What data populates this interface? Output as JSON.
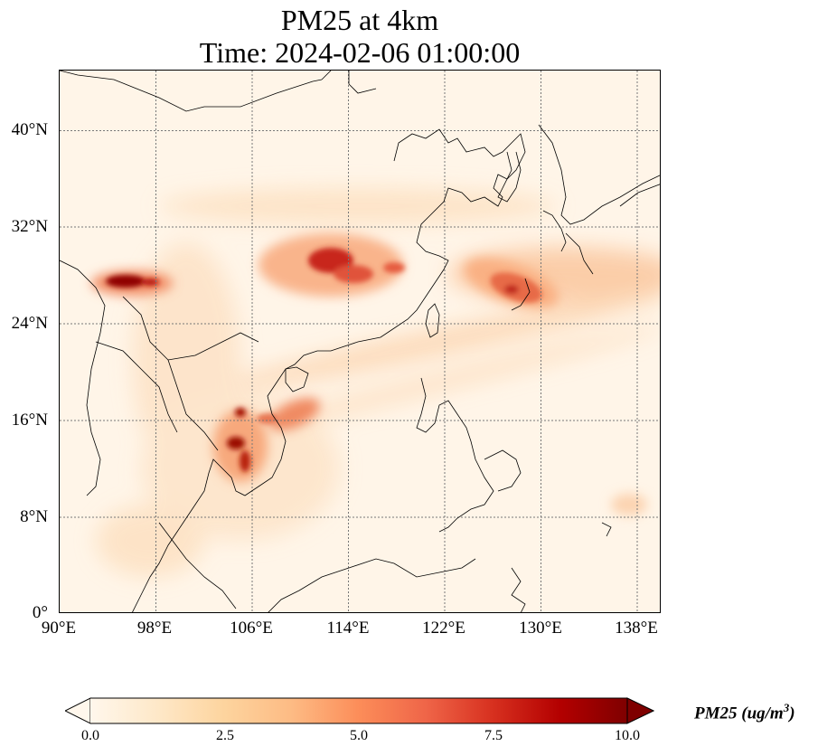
{
  "title": {
    "line1": "PM25 at 4km",
    "line2": "Time: 2024-02-06 01:00:00"
  },
  "map": {
    "lat_ticks": [
      "40°N",
      "32°N",
      "24°N",
      "16°N",
      "8°N",
      "0°"
    ],
    "lon_ticks": [
      "90°E",
      "98°E",
      "106°E",
      "114°E",
      "122°E",
      "130°E",
      "138°E"
    ],
    "extent": {
      "lon_min": 90,
      "lon_max": 140,
      "lat_min": 0,
      "lat_max": 45
    },
    "gridlines": true,
    "colormap": "OrRd"
  },
  "colorbar": {
    "label_prefix": "PM25 (ug/m",
    "label_sup": "3",
    "label_suffix": ")",
    "ticks": [
      "0.0",
      "2.5",
      "5.0",
      "7.5",
      "10.0"
    ],
    "min": 0,
    "max": 10,
    "extend": "both",
    "colors": [
      "#fff7ec",
      "#fee8c8",
      "#fdd49e",
      "#fdbb84",
      "#fc8d59",
      "#ef6548",
      "#d7301f",
      "#b30000",
      "#7f0000"
    ]
  }
}
